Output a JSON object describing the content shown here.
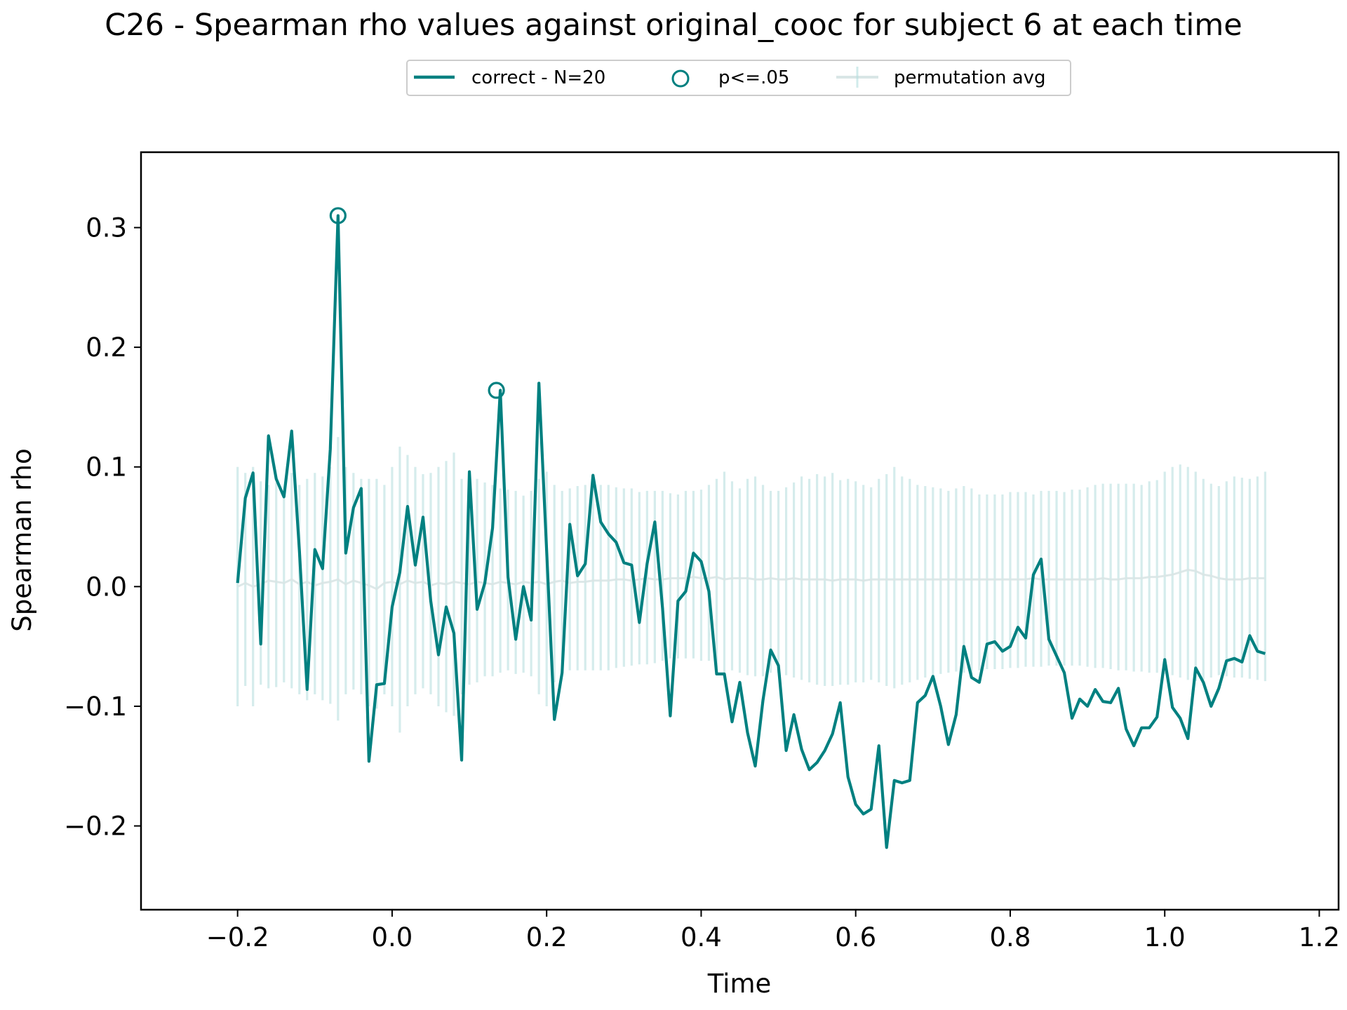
{
  "chart_data": {
    "type": "line",
    "title": "C26 - Spearman rho values against original_cooc for subject 6 at each time",
    "xlabel": "Time",
    "ylabel": "Spearman rho",
    "xlim": [
      -0.325,
      1.225
    ],
    "ylim": [
      -0.27,
      0.363
    ],
    "xticks": [
      -0.2,
      0.0,
      0.2,
      0.4,
      0.6,
      0.8,
      1.0,
      1.2
    ],
    "xtick_labels": [
      "−0.2",
      "0.0",
      "0.2",
      "0.4",
      "0.6",
      "0.8",
      "1.0",
      "1.2"
    ],
    "yticks": [
      -0.2,
      -0.1,
      0.0,
      0.1,
      0.2,
      0.3
    ],
    "ytick_labels": [
      "−0.2",
      "−0.1",
      "0.0",
      "0.1",
      "0.2",
      "0.3"
    ],
    "grid": false,
    "legend": {
      "placement": "top-center",
      "entries": [
        "correct - N=20",
        "p<=.05",
        "permutation avg"
      ]
    },
    "colors": {
      "correct": "#008080",
      "permutation": "#b3dede",
      "permutation_line": "#d9e6e6"
    },
    "x_start": -0.2,
    "x_step": 0.01,
    "series": [
      {
        "name": "correct - N=20",
        "values": [
          0.003,
          0.074,
          0.095,
          -0.048,
          0.126,
          0.09,
          0.075,
          0.13,
          0.03,
          -0.086,
          0.031,
          0.015,
          0.115,
          0.31,
          0.028,
          0.066,
          0.082,
          -0.146,
          -0.082,
          -0.081,
          -0.017,
          0.012,
          0.067,
          0.018,
          0.058,
          -0.012,
          -0.057,
          -0.017,
          -0.039,
          -0.145,
          0.096,
          -0.019,
          0.003,
          0.049,
          0.164,
          0.008,
          -0.044,
          -0.0,
          -0.028,
          0.17,
          0.03,
          -0.111,
          -0.072,
          0.052,
          0.009,
          0.019,
          0.093,
          0.054,
          0.044,
          0.037,
          0.02,
          0.018,
          -0.03,
          0.019,
          0.054,
          -0.018,
          -0.108,
          -0.012,
          -0.004,
          0.028,
          0.021,
          -0.004,
          -0.073,
          -0.073,
          -0.113,
          -0.08,
          -0.122,
          -0.15,
          -0.095,
          -0.053,
          -0.066,
          -0.137,
          -0.107,
          -0.136,
          -0.153,
          -0.147,
          -0.137,
          -0.123,
          -0.097,
          -0.159,
          -0.182,
          -0.19,
          -0.186,
          -0.133,
          -0.218,
          -0.162,
          -0.164,
          -0.162,
          -0.097,
          -0.091,
          -0.075,
          -0.1,
          -0.132,
          -0.107,
          -0.05,
          -0.076,
          -0.08,
          -0.048,
          -0.046,
          -0.054,
          -0.05,
          -0.034,
          -0.043,
          0.01,
          0.023,
          -0.044,
          -0.058,
          -0.072,
          -0.11,
          -0.094,
          -0.1,
          -0.086,
          -0.096,
          -0.097,
          -0.085,
          -0.119,
          -0.133,
          -0.118,
          -0.118,
          -0.109,
          -0.061,
          -0.101,
          -0.11,
          -0.127,
          -0.068,
          -0.08,
          -0.1,
          -0.085,
          -0.062,
          -0.06,
          -0.063,
          -0.041,
          -0.054,
          -0.056
        ]
      }
    ],
    "significant_points": [
      {
        "x": -0.07,
        "y": 0.31
      },
      {
        "x": 0.135,
        "y": 0.164
      }
    ],
    "permutation": {
      "name": "permutation avg",
      "mean": [
        0.0,
        0.003,
        0.0,
        0.002,
        0.005,
        0.004,
        0.003,
        0.006,
        0.002,
        0.004,
        0.001,
        0.003,
        0.004,
        0.006,
        0.002,
        0.005,
        0.003,
        0.001,
        -0.002,
        0.003,
        0.004,
        0.002,
        0.005,
        0.003,
        0.004,
        0.001,
        0.003,
        0.002,
        0.004,
        0.003,
        0.002,
        0.004,
        0.003,
        0.002,
        0.004,
        0.003,
        0.002,
        0.004,
        0.003,
        0.004,
        0.002,
        0.004,
        0.005,
        0.003,
        0.004,
        0.004,
        0.005,
        0.005,
        0.005,
        0.006,
        0.006,
        0.005,
        0.006,
        0.007,
        0.006,
        0.006,
        0.007,
        0.007,
        0.007,
        0.008,
        0.007,
        0.007,
        0.008,
        0.006,
        0.007,
        0.007,
        0.007,
        0.006,
        0.006,
        0.007,
        0.006,
        0.006,
        0.007,
        0.006,
        0.006,
        0.006,
        0.006,
        0.005,
        0.006,
        0.006,
        0.006,
        0.005,
        0.006,
        0.006,
        0.006,
        0.006,
        0.006,
        0.006,
        0.006,
        0.006,
        0.006,
        0.006,
        0.006,
        0.006,
        0.006,
        0.006,
        0.006,
        0.006,
        0.006,
        0.006,
        0.006,
        0.006,
        0.006,
        0.007,
        0.006,
        0.006,
        0.006,
        0.006,
        0.006,
        0.006,
        0.006,
        0.006,
        0.007,
        0.006,
        0.006,
        0.007,
        0.007,
        0.007,
        0.008,
        0.008,
        0.009,
        0.01,
        0.012,
        0.014,
        0.013,
        0.01,
        0.009,
        0.007,
        0.006,
        0.006,
        0.006,
        0.007,
        0.007,
        0.007
      ],
      "upper": [
        0.1,
        0.095,
        0.1,
        0.088,
        0.085,
        0.087,
        0.08,
        0.095,
        0.085,
        0.09,
        0.095,
        0.092,
        0.1,
        0.125,
        0.1,
        0.095,
        0.09,
        0.09,
        0.09,
        0.085,
        0.1,
        0.117,
        0.11,
        0.1,
        0.094,
        0.095,
        0.1,
        0.105,
        0.112,
        0.09,
        0.096,
        0.09,
        0.087,
        0.085,
        0.082,
        0.081,
        0.08,
        0.076,
        0.08,
        0.09,
        0.096,
        0.085,
        0.08,
        0.082,
        0.084,
        0.085,
        0.084,
        0.085,
        0.085,
        0.083,
        0.082,
        0.082,
        0.079,
        0.08,
        0.08,
        0.08,
        0.078,
        0.077,
        0.08,
        0.08,
        0.081,
        0.085,
        0.09,
        0.096,
        0.088,
        0.082,
        0.09,
        0.092,
        0.085,
        0.08,
        0.08,
        0.083,
        0.087,
        0.092,
        0.09,
        0.094,
        0.092,
        0.095,
        0.089,
        0.09,
        0.088,
        0.085,
        0.083,
        0.09,
        0.094,
        0.1,
        0.092,
        0.09,
        0.085,
        0.084,
        0.083,
        0.082,
        0.08,
        0.082,
        0.084,
        0.082,
        0.077,
        0.077,
        0.077,
        0.077,
        0.079,
        0.079,
        0.079,
        0.077,
        0.08,
        0.08,
        0.08,
        0.079,
        0.081,
        0.081,
        0.083,
        0.085,
        0.086,
        0.086,
        0.086,
        0.086,
        0.086,
        0.085,
        0.088,
        0.089,
        0.096,
        0.1,
        0.102,
        0.1,
        0.096,
        0.09,
        0.086,
        0.084,
        0.088,
        0.092,
        0.091,
        0.09,
        0.092,
        0.096
      ],
      "lower": [
        -0.1,
        -0.083,
        -0.1,
        -0.082,
        -0.085,
        -0.084,
        -0.08,
        -0.085,
        -0.09,
        -0.095,
        -0.09,
        -0.095,
        -0.098,
        -0.112,
        -0.09,
        -0.086,
        -0.09,
        -0.1,
        -0.102,
        -0.09,
        -0.1,
        -0.122,
        -0.1,
        -0.09,
        -0.085,
        -0.09,
        -0.1,
        -0.105,
        -0.108,
        -0.09,
        -0.082,
        -0.08,
        -0.075,
        -0.075,
        -0.072,
        -0.07,
        -0.073,
        -0.072,
        -0.075,
        -0.09,
        -0.1,
        -0.08,
        -0.072,
        -0.07,
        -0.07,
        -0.07,
        -0.07,
        -0.07,
        -0.07,
        -0.068,
        -0.067,
        -0.066,
        -0.065,
        -0.065,
        -0.064,
        -0.062,
        -0.06,
        -0.06,
        -0.06,
        -0.06,
        -0.062,
        -0.062,
        -0.068,
        -0.072,
        -0.07,
        -0.072,
        -0.074,
        -0.075,
        -0.075,
        -0.072,
        -0.072,
        -0.074,
        -0.076,
        -0.078,
        -0.08,
        -0.082,
        -0.083,
        -0.083,
        -0.082,
        -0.082,
        -0.08,
        -0.08,
        -0.078,
        -0.08,
        -0.083,
        -0.085,
        -0.082,
        -0.08,
        -0.078,
        -0.076,
        -0.074,
        -0.073,
        -0.072,
        -0.071,
        -0.072,
        -0.073,
        -0.07,
        -0.069,
        -0.069,
        -0.069,
        -0.068,
        -0.068,
        -0.067,
        -0.067,
        -0.067,
        -0.066,
        -0.066,
        -0.066,
        -0.066,
        -0.066,
        -0.067,
        -0.068,
        -0.068,
        -0.069,
        -0.07,
        -0.07,
        -0.071,
        -0.071,
        -0.072,
        -0.072,
        -0.073,
        -0.074,
        -0.076,
        -0.078,
        -0.079,
        -0.078,
        -0.076,
        -0.074,
        -0.075,
        -0.076,
        -0.076,
        -0.077,
        -0.078,
        -0.079
      ]
    }
  }
}
